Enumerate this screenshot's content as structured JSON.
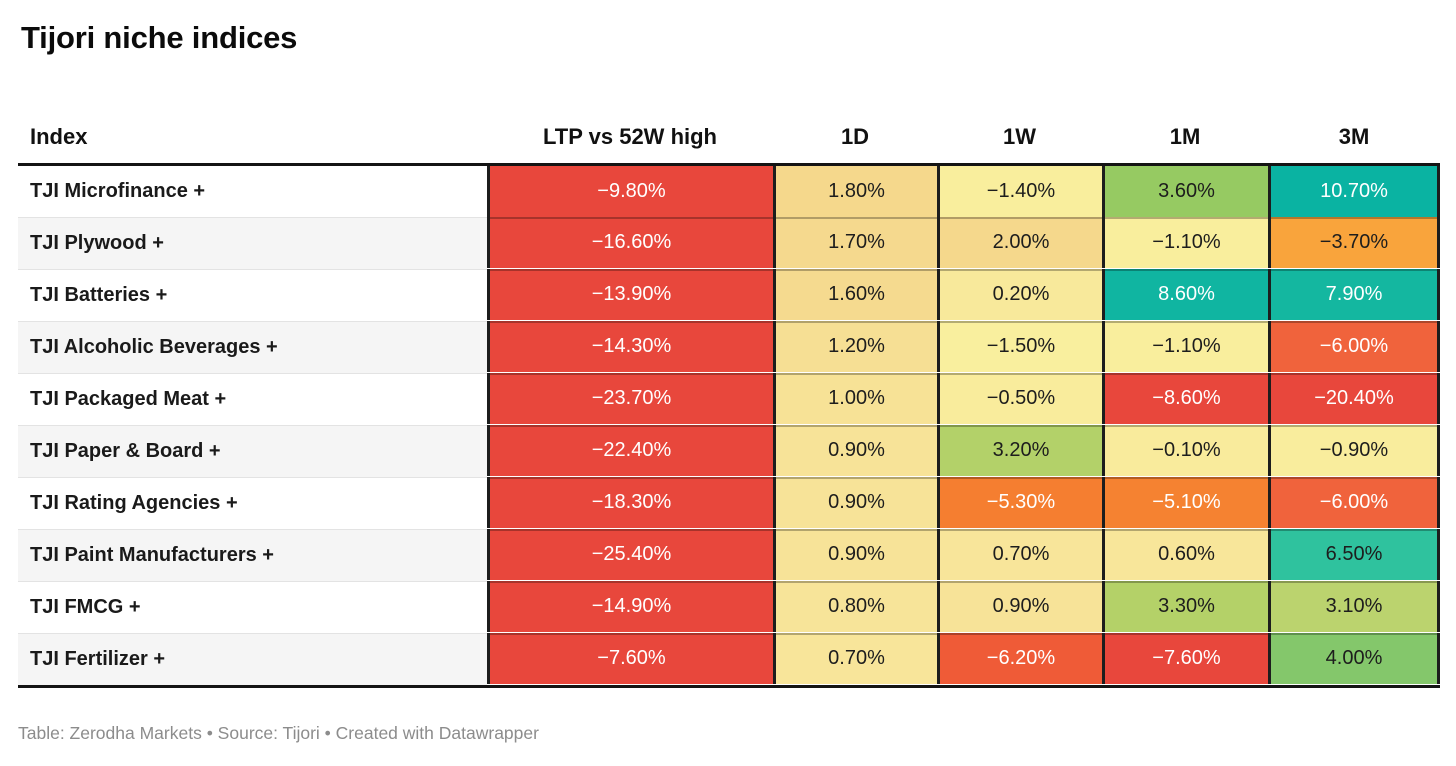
{
  "title": "Tijori niche indices",
  "footer": "Table: Zerodha Markets • Source: Tijori • Created with Datawrapper",
  "table": {
    "columns": [
      "Index",
      "LTP vs 52W high",
      "1D",
      "1W",
      "1M",
      "3M"
    ],
    "rows": [
      {
        "index": "TJI Microfinance +",
        "cells": [
          {
            "v": "−9.80%",
            "bg": "#E8473C",
            "fg": "#FFFFFF"
          },
          {
            "v": "1.80%",
            "bg": "#F5D88C",
            "fg": "#1d1d1d"
          },
          {
            "v": "−1.40%",
            "bg": "#F9EE9D",
            "fg": "#1d1d1d"
          },
          {
            "v": "3.60%",
            "bg": "#96CA62",
            "fg": "#1d1d1d"
          },
          {
            "v": "10.70%",
            "bg": "#0AB3A2",
            "fg": "#FFFFFF"
          }
        ]
      },
      {
        "index": "TJI Plywood +",
        "cells": [
          {
            "v": "−16.60%",
            "bg": "#E8473C",
            "fg": "#FFFFFF"
          },
          {
            "v": "1.70%",
            "bg": "#F5D98E",
            "fg": "#1d1d1d"
          },
          {
            "v": "2.00%",
            "bg": "#F5D88C",
            "fg": "#1d1d1d"
          },
          {
            "v": "−1.10%",
            "bg": "#F9EE9D",
            "fg": "#1d1d1d"
          },
          {
            "v": "−3.70%",
            "bg": "#F9A43C",
            "fg": "#1d1d1d"
          }
        ]
      },
      {
        "index": "TJI Batteries +",
        "cells": [
          {
            "v": "−13.90%",
            "bg": "#E8473C",
            "fg": "#FFFFFF"
          },
          {
            "v": "1.60%",
            "bg": "#F5DA8F",
            "fg": "#1d1d1d"
          },
          {
            "v": "0.20%",
            "bg": "#F8E99B",
            "fg": "#1d1d1d"
          },
          {
            "v": "8.60%",
            "bg": "#10B5A1",
            "fg": "#FFFFFF"
          },
          {
            "v": "7.90%",
            "bg": "#14B7A0",
            "fg": "#FFFFFF"
          }
        ]
      },
      {
        "index": "TJI Alcoholic Beverages +",
        "cells": [
          {
            "v": "−14.30%",
            "bg": "#E8473C",
            "fg": "#FFFFFF"
          },
          {
            "v": "1.20%",
            "bg": "#F6DF94",
            "fg": "#1d1d1d"
          },
          {
            "v": "−1.50%",
            "bg": "#F9EF9E",
            "fg": "#1d1d1d"
          },
          {
            "v": "−1.10%",
            "bg": "#F9EE9D",
            "fg": "#1d1d1d"
          },
          {
            "v": "−6.00%",
            "bg": "#F0633C",
            "fg": "#FFFFFF"
          }
        ]
      },
      {
        "index": "TJI Packaged Meat +",
        "cells": [
          {
            "v": "−23.70%",
            "bg": "#E8473C",
            "fg": "#FFFFFF"
          },
          {
            "v": "1.00%",
            "bg": "#F7E296",
            "fg": "#1d1d1d"
          },
          {
            "v": "−0.50%",
            "bg": "#F9EC9C",
            "fg": "#1d1d1d"
          },
          {
            "v": "−8.60%",
            "bg": "#E8473C",
            "fg": "#FFFFFF"
          },
          {
            "v": "−20.40%",
            "bg": "#E8473C",
            "fg": "#FFFFFF"
          }
        ]
      },
      {
        "index": "TJI Paper & Board +",
        "cells": [
          {
            "v": "−22.40%",
            "bg": "#E8473C",
            "fg": "#FFFFFF"
          },
          {
            "v": "0.90%",
            "bg": "#F7E398",
            "fg": "#1d1d1d"
          },
          {
            "v": "3.20%",
            "bg": "#B3D169",
            "fg": "#1d1d1d"
          },
          {
            "v": "−0.10%",
            "bg": "#F9EB9C",
            "fg": "#1d1d1d"
          },
          {
            "v": "−0.90%",
            "bg": "#F9ED9D",
            "fg": "#1d1d1d"
          }
        ]
      },
      {
        "index": "TJI Rating Agencies +",
        "cells": [
          {
            "v": "−18.30%",
            "bg": "#E8473C",
            "fg": "#FFFFFF"
          },
          {
            "v": "0.90%",
            "bg": "#F7E398",
            "fg": "#1d1d1d"
          },
          {
            "v": "−5.30%",
            "bg": "#F57E30",
            "fg": "#FFFFFF"
          },
          {
            "v": "−5.10%",
            "bg": "#F58231",
            "fg": "#FFFFFF"
          },
          {
            "v": "−6.00%",
            "bg": "#F0633C",
            "fg": "#FFFFFF"
          }
        ]
      },
      {
        "index": "TJI Paint Manufacturers +",
        "cells": [
          {
            "v": "−25.40%",
            "bg": "#E8473C",
            "fg": "#FFFFFF"
          },
          {
            "v": "0.90%",
            "bg": "#F7E398",
            "fg": "#1d1d1d"
          },
          {
            "v": "0.70%",
            "bg": "#F8E59A",
            "fg": "#1d1d1d"
          },
          {
            "v": "0.60%",
            "bg": "#F8E69A",
            "fg": "#1d1d1d"
          },
          {
            "v": "6.50%",
            "bg": "#2FC29E",
            "fg": "#1d1d1d"
          }
        ]
      },
      {
        "index": "TJI FMCG +",
        "cells": [
          {
            "v": "−14.90%",
            "bg": "#E8473C",
            "fg": "#FFFFFF"
          },
          {
            "v": "0.80%",
            "bg": "#F7E499",
            "fg": "#1d1d1d"
          },
          {
            "v": "0.90%",
            "bg": "#F7E398",
            "fg": "#1d1d1d"
          },
          {
            "v": "3.30%",
            "bg": "#B4D168",
            "fg": "#1d1d1d"
          },
          {
            "v": "3.10%",
            "bg": "#BBD36E",
            "fg": "#1d1d1d"
          }
        ]
      },
      {
        "index": "TJI Fertilizer +",
        "cells": [
          {
            "v": "−7.60%",
            "bg": "#E8473C",
            "fg": "#FFFFFF"
          },
          {
            "v": "0.70%",
            "bg": "#F8E59A",
            "fg": "#1d1d1d"
          },
          {
            "v": "−6.20%",
            "bg": "#EF5B37",
            "fg": "#FFFFFF"
          },
          {
            "v": "−7.60%",
            "bg": "#E8473C",
            "fg": "#FFFFFF"
          },
          {
            "v": "4.00%",
            "bg": "#84C76B",
            "fg": "#1d1d1d"
          }
        ]
      }
    ]
  },
  "chart_data": {
    "type": "table",
    "title": "Tijori niche indices",
    "columns": [
      "Index",
      "LTP vs 52W high",
      "1D",
      "1W",
      "1M",
      "3M"
    ],
    "rows": [
      {
        "index": "TJI Microfinance +",
        "ltp_vs_52w_high": -9.8,
        "d1": 1.8,
        "w1": -1.4,
        "m1": 3.6,
        "m3": 10.7
      },
      {
        "index": "TJI Plywood +",
        "ltp_vs_52w_high": -16.6,
        "d1": 1.7,
        "w1": 2.0,
        "m1": -1.1,
        "m3": -3.7
      },
      {
        "index": "TJI Batteries +",
        "ltp_vs_52w_high": -13.9,
        "d1": 1.6,
        "w1": 0.2,
        "m1": 8.6,
        "m3": 7.9
      },
      {
        "index": "TJI Alcoholic Beverages +",
        "ltp_vs_52w_high": -14.3,
        "d1": 1.2,
        "w1": -1.5,
        "m1": -1.1,
        "m3": -6.0
      },
      {
        "index": "TJI Packaged Meat +",
        "ltp_vs_52w_high": -23.7,
        "d1": 1.0,
        "w1": -0.5,
        "m1": -8.6,
        "m3": -20.4
      },
      {
        "index": "TJI Paper & Board +",
        "ltp_vs_52w_high": -22.4,
        "d1": 0.9,
        "w1": 3.2,
        "m1": -0.1,
        "m3": -0.9
      },
      {
        "index": "TJI Rating Agencies +",
        "ltp_vs_52w_high": -18.3,
        "d1": 0.9,
        "w1": -5.3,
        "m1": -5.1,
        "m3": -6.0
      },
      {
        "index": "TJI Paint Manufacturers +",
        "ltp_vs_52w_high": -25.4,
        "d1": 0.9,
        "w1": 0.7,
        "m1": 0.6,
        "m3": 6.5
      },
      {
        "index": "TJI FMCG +",
        "ltp_vs_52w_high": -14.9,
        "d1": 0.8,
        "w1": 0.9,
        "m1": 3.3,
        "m3": 3.1
      },
      {
        "index": "TJI Fertilizer +",
        "ltp_vs_52w_high": -7.6,
        "d1": 0.7,
        "w1": -6.2,
        "m1": -7.6,
        "m3": 4.0
      }
    ],
    "units": "percent",
    "color_scale": "diverging red (negative) → yellow (near zero) → green/teal (positive); LTP vs 52W high column is uniformly red"
  },
  "colors": {
    "negative_strong": "#E8473C",
    "negative_mid": "#F58231",
    "neutral": "#F9EE9D",
    "positive_mid": "#96CA62",
    "positive_strong": "#0AB3A2",
    "row_stripe": "#F5F5F5",
    "grid_border": "#1d1d1d"
  }
}
